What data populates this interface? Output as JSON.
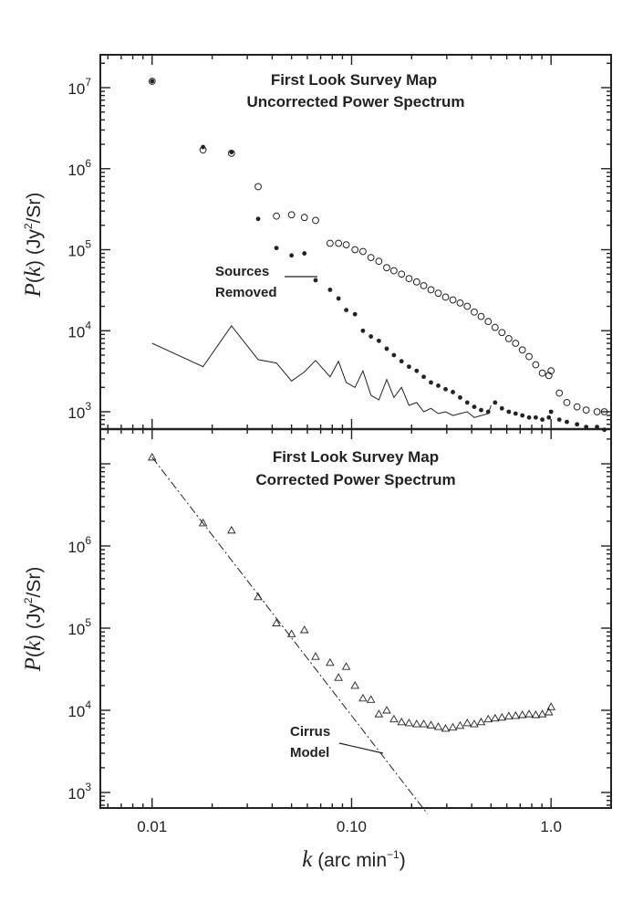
{
  "chart_data": [
    {
      "type": "scatter",
      "panel": "top",
      "title": "First Look Survey Map",
      "subtitle": "Uncorrected Power Spectrum",
      "xlabel": "",
      "ylabel": "P(k) (Jy2/Sr)",
      "xscale": "log",
      "yscale": "log",
      "xlim": [
        0.0055,
        2.0
      ],
      "ylim": [
        550,
        22000000
      ],
      "yticks": [
        {
          "base": "10",
          "exp": "7"
        },
        {
          "base": "10",
          "exp": "6"
        },
        {
          "base": "10",
          "exp": "5"
        },
        {
          "base": "10",
          "exp": "4"
        },
        {
          "base": "10",
          "exp": "3"
        }
      ],
      "annotations": [
        {
          "lines": [
            "Sources",
            "Removed"
          ]
        }
      ],
      "series": [
        {
          "marker": "open-circle",
          "x": [
            0.01,
            0.018,
            0.025,
            0.034,
            0.042,
            0.05,
            0.058,
            0.066,
            0.078,
            0.086,
            0.094,
            0.104,
            0.114,
            0.125,
            0.137,
            0.15,
            0.163,
            0.178,
            0.194,
            0.212,
            0.23,
            0.25,
            0.272,
            0.296,
            0.322,
            0.35,
            0.38,
            0.412,
            0.446,
            0.484,
            0.524,
            0.567,
            0.614,
            0.664,
            0.718,
            0.776,
            0.838,
            0.904,
            0.975,
            1.0,
            1.1,
            1.2,
            1.35,
            1.5,
            1.7,
            1.85
          ],
          "y": [
            12000000,
            1700000,
            1550000,
            600000,
            260000,
            270000,
            250000,
            230000,
            120000,
            120000,
            115000,
            100000,
            95000,
            80000,
            72000,
            60000,
            55000,
            50000,
            44000,
            40000,
            36000,
            32000,
            29000,
            26000,
            24000,
            22000,
            20000,
            17000,
            15000,
            13000,
            11000,
            9500,
            8000,
            7000,
            5800,
            4800,
            3800,
            3000,
            2800,
            3200,
            1700,
            1300,
            1150,
            1050,
            1000,
            1000
          ]
        },
        {
          "marker": "filled-circle",
          "x": [
            0.01,
            0.018,
            0.025,
            0.034,
            0.042,
            0.05,
            0.058,
            0.066,
            0.078,
            0.086,
            0.094,
            0.104,
            0.114,
            0.125,
            0.137,
            0.15,
            0.163,
            0.178,
            0.194,
            0.212,
            0.23,
            0.25,
            0.272,
            0.296,
            0.322,
            0.35,
            0.38,
            0.412,
            0.446,
            0.484,
            0.524,
            0.567,
            0.614,
            0.664,
            0.718,
            0.776,
            0.838,
            0.904,
            0.975,
            1.0,
            1.1,
            1.2,
            1.35,
            1.5,
            1.7,
            1.85
          ],
          "y": [
            12000000,
            1850000,
            1600000,
            240000,
            105000,
            85000,
            90000,
            42000,
            32000,
            25000,
            18000,
            16000,
            10000,
            8500,
            7500,
            6000,
            5000,
            4200,
            3600,
            3200,
            2700,
            2300,
            2100,
            1900,
            1750,
            1500,
            1300,
            1150,
            1050,
            1000,
            1300,
            1100,
            1000,
            950,
            900,
            850,
            850,
            800,
            850,
            1000,
            800,
            750,
            700,
            650,
            650,
            600
          ]
        },
        {
          "marker": "line",
          "x": [
            0.01,
            0.018,
            0.025,
            0.034,
            0.042,
            0.05,
            0.058,
            0.066,
            0.078,
            0.086,
            0.094,
            0.104,
            0.114,
            0.125,
            0.137,
            0.15,
            0.163,
            0.178,
            0.194,
            0.212,
            0.23,
            0.25,
            0.272,
            0.296,
            0.322,
            0.35,
            0.38,
            0.412,
            0.446,
            0.484,
            0.5
          ],
          "y": [
            7000,
            3600,
            11500,
            4400,
            4000,
            2400,
            3100,
            4300,
            2700,
            4200,
            2300,
            2000,
            3200,
            1600,
            1400,
            2500,
            1500,
            2000,
            1200,
            1300,
            1000,
            1100,
            950,
            1000,
            900,
            950,
            1000,
            850,
            900,
            950,
            1200
          ]
        }
      ]
    },
    {
      "type": "scatter",
      "panel": "bottom",
      "title": "First Look Survey Map",
      "subtitle": "Corrected Power Spectrum",
      "xlabel": "k (arc min-1)",
      "ylabel": "P(k) (Jy2/Sr)",
      "xscale": "log",
      "yscale": "log",
      "xlim": [
        0.0055,
        2.0
      ],
      "ylim": [
        550,
        22000000
      ],
      "xticks": [
        "0.01",
        "0.10",
        "1.0"
      ],
      "yticks": [
        {
          "base": "10",
          "exp": "6"
        },
        {
          "base": "10",
          "exp": "5"
        },
        {
          "base": "10",
          "exp": "4"
        },
        {
          "base": "10",
          "exp": "3"
        }
      ],
      "annotations": [
        {
          "lines": [
            "Cirrus",
            "Model"
          ]
        }
      ],
      "series": [
        {
          "marker": "open-triangle",
          "x": [
            0.01,
            0.018,
            0.025,
            0.034,
            0.042,
            0.05,
            0.058,
            0.066,
            0.078,
            0.086,
            0.094,
            0.104,
            0.114,
            0.125,
            0.137,
            0.15,
            0.163,
            0.178,
            0.194,
            0.212,
            0.23,
            0.25,
            0.272,
            0.296,
            0.322,
            0.35,
            0.38,
            0.412,
            0.446,
            0.484,
            0.524,
            0.567,
            0.614,
            0.664,
            0.718,
            0.776,
            0.838,
            0.904,
            0.975,
            1.0
          ],
          "y": [
            12000000,
            1900000,
            1550000,
            240000,
            115000,
            85000,
            95000,
            45000,
            38000,
            25000,
            34000,
            20000,
            14000,
            13500,
            9000,
            10000,
            7800,
            7200,
            7000,
            6800,
            6800,
            6600,
            6300,
            6000,
            6200,
            6500,
            7000,
            6800,
            7200,
            7800,
            8000,
            8200,
            8500,
            8600,
            8800,
            9000,
            8800,
            9000,
            9500,
            11000
          ]
        },
        {
          "marker": "dashed-line",
          "name": "Cirrus Model",
          "x": [
            0.01,
            0.24
          ],
          "y": [
            12000000,
            550
          ]
        }
      ]
    }
  ]
}
